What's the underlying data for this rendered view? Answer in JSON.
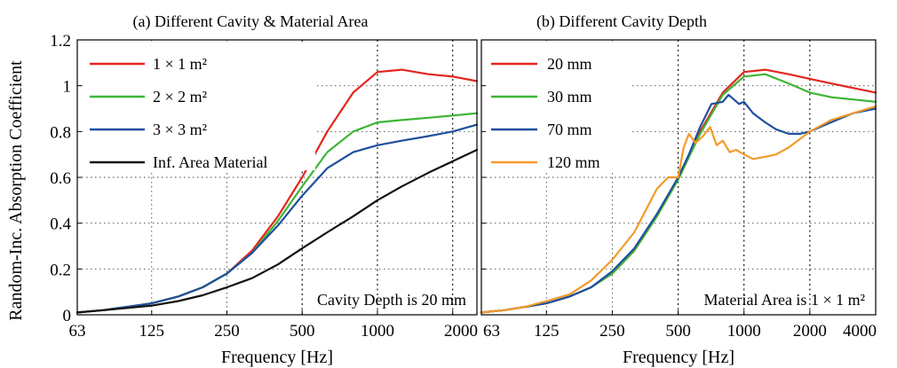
{
  "figure": {
    "ylabel": "Random-Inc. Absorption Coefficient"
  },
  "chart_data": [
    {
      "type": "line",
      "title": "(a) Different Cavity & Material Area",
      "xlabel": "Frequency [Hz]",
      "ylabel": "Random-Inc. Absorption Coefficient",
      "x_scale": "log",
      "xlim": [
        63,
        2500
      ],
      "ylim": [
        0,
        1.2
      ],
      "xticks": [
        63,
        125,
        250,
        500,
        1000,
        2000
      ],
      "xtick_labels": [
        "63",
        "125",
        "250",
        "500",
        "1000",
        "2000"
      ],
      "yticks": [
        0,
        0.2,
        0.4,
        0.6,
        0.8,
        1,
        1.2
      ],
      "ytick_labels": [
        "0",
        "0.2",
        "0.4",
        "0.6",
        "0.8",
        "1",
        "1.2"
      ],
      "grid": true,
      "legend_position": "top-left",
      "annotation": "Cavity Depth is 20 mm",
      "series": [
        {
          "name": "1 × 1 m²",
          "color": "#e3261f",
          "x": [
            63,
            80,
            100,
            125,
            160,
            200,
            250,
            315,
            400,
            500,
            630,
            800,
            1000,
            1250,
            1600,
            2000,
            2500
          ],
          "y": [
            0.01,
            0.02,
            0.035,
            0.05,
            0.08,
            0.12,
            0.18,
            0.28,
            0.43,
            0.6,
            0.8,
            0.97,
            1.06,
            1.07,
            1.05,
            1.04,
            1.02
          ]
        },
        {
          "name": "2 × 2 m²",
          "color": "#3db535",
          "x": [
            63,
            80,
            100,
            125,
            160,
            200,
            250,
            315,
            400,
            500,
            630,
            800,
            1000,
            1250,
            1600,
            2000,
            2500
          ],
          "y": [
            0.01,
            0.02,
            0.035,
            0.05,
            0.08,
            0.12,
            0.18,
            0.27,
            0.41,
            0.56,
            0.71,
            0.8,
            0.84,
            0.85,
            0.86,
            0.87,
            0.88
          ]
        },
        {
          "name": "3 × 3 m²",
          "color": "#1f4f9e",
          "x": [
            63,
            80,
            100,
            125,
            160,
            200,
            250,
            315,
            400,
            500,
            630,
            800,
            1000,
            1250,
            1600,
            2000,
            2500
          ],
          "y": [
            0.01,
            0.02,
            0.035,
            0.05,
            0.08,
            0.12,
            0.18,
            0.27,
            0.39,
            0.52,
            0.64,
            0.71,
            0.74,
            0.76,
            0.78,
            0.8,
            0.83
          ]
        },
        {
          "name": "Inf. Area Material",
          "color": "#111111",
          "x": [
            63,
            80,
            100,
            125,
            160,
            200,
            250,
            315,
            400,
            500,
            630,
            800,
            1000,
            1250,
            1600,
            2000,
            2500
          ],
          "y": [
            0.01,
            0.02,
            0.03,
            0.04,
            0.06,
            0.085,
            0.12,
            0.16,
            0.22,
            0.29,
            0.36,
            0.43,
            0.5,
            0.56,
            0.62,
            0.67,
            0.72
          ]
        }
      ]
    },
    {
      "type": "line",
      "title": "(b) Different Cavity Depth",
      "xlabel": "Frequency [Hz]",
      "x_scale": "log",
      "xlim": [
        63,
        4000
      ],
      "ylim": [
        0,
        1.2
      ],
      "xticks": [
        63,
        125,
        250,
        500,
        1000,
        2000,
        4000
      ],
      "xtick_labels": [
        "63",
        "125",
        "250",
        "500",
        "1000",
        "2000",
        "4000"
      ],
      "yticks": [
        0,
        0.2,
        0.4,
        0.6,
        0.8,
        1,
        1.2
      ],
      "grid": true,
      "legend_position": "top-left",
      "annotation": "Material Area is 1 × 1 m²",
      "series": [
        {
          "name": "20 mm",
          "color": "#e3261f",
          "x": [
            63,
            80,
            100,
            125,
            160,
            200,
            250,
            315,
            400,
            500,
            630,
            800,
            1000,
            1250,
            1600,
            2000,
            2500,
            3150,
            4000
          ],
          "y": [
            0.01,
            0.02,
            0.035,
            0.05,
            0.08,
            0.12,
            0.18,
            0.28,
            0.43,
            0.6,
            0.8,
            0.97,
            1.06,
            1.07,
            1.05,
            1.03,
            1.01,
            0.99,
            0.97
          ]
        },
        {
          "name": "30 mm",
          "color": "#3db535",
          "x": [
            63,
            80,
            100,
            125,
            160,
            200,
            250,
            315,
            400,
            500,
            630,
            800,
            1000,
            1250,
            1600,
            2000,
            2500,
            3150,
            4000
          ],
          "y": [
            0.01,
            0.02,
            0.035,
            0.05,
            0.08,
            0.12,
            0.18,
            0.28,
            0.43,
            0.59,
            0.79,
            0.96,
            1.04,
            1.05,
            1.01,
            0.97,
            0.95,
            0.94,
            0.93
          ]
        },
        {
          "name": "70 mm",
          "color": "#1f4f9e",
          "x": [
            63,
            80,
            100,
            125,
            160,
            200,
            250,
            315,
            400,
            500,
            560,
            630,
            710,
            800,
            850,
            900,
            950,
            1000,
            1100,
            1250,
            1400,
            1600,
            1800,
            2000,
            2500,
            3150,
            4000
          ],
          "y": [
            0.01,
            0.02,
            0.035,
            0.05,
            0.08,
            0.12,
            0.19,
            0.29,
            0.44,
            0.6,
            0.7,
            0.82,
            0.92,
            0.93,
            0.96,
            0.94,
            0.92,
            0.93,
            0.88,
            0.84,
            0.81,
            0.79,
            0.79,
            0.8,
            0.84,
            0.88,
            0.9
          ]
        },
        {
          "name": "120 mm",
          "color": "#f39a2a",
          "x": [
            63,
            80,
            100,
            125,
            160,
            200,
            250,
            315,
            400,
            450,
            500,
            530,
            560,
            600,
            650,
            700,
            750,
            800,
            860,
            920,
            1000,
            1100,
            1250,
            1400,
            1600,
            2000,
            2500,
            3150,
            4000
          ],
          "y": [
            0.01,
            0.02,
            0.035,
            0.06,
            0.09,
            0.15,
            0.24,
            0.36,
            0.55,
            0.6,
            0.6,
            0.73,
            0.79,
            0.75,
            0.78,
            0.82,
            0.74,
            0.76,
            0.71,
            0.72,
            0.7,
            0.68,
            0.69,
            0.7,
            0.73,
            0.8,
            0.85,
            0.88,
            0.91
          ]
        }
      ]
    }
  ]
}
